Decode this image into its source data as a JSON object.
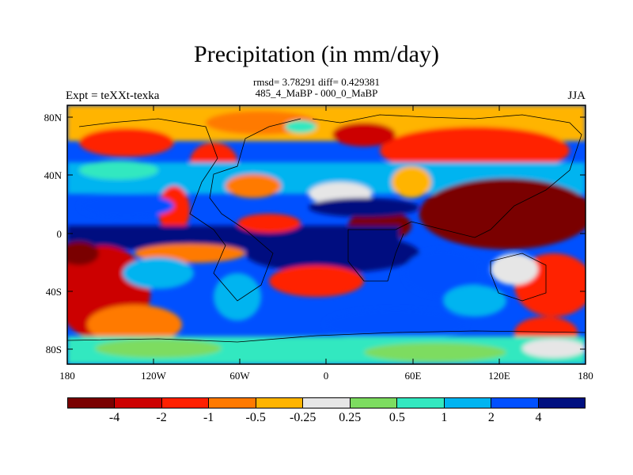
{
  "title": "Precipitation (in mm/day)",
  "stats_line1": "rmsd= 3.78291 diff= 0.429381",
  "stats_line2": "485_4_MaBP - 000_0_MaBP",
  "left_label": "Expt = teXXt-texka",
  "right_label": "JJA",
  "y_ticks": [
    "80N",
    "40N",
    "0",
    "40S",
    "80S"
  ],
  "x_ticks": [
    "180",
    "120W",
    "60W",
    "0",
    "60E",
    "120E",
    "180"
  ],
  "colorbar": {
    "colors": [
      "#7a0000",
      "#cc0000",
      "#ff2000",
      "#ff7a00",
      "#ffb400",
      "#e6e6e6",
      "#7ddc60",
      "#33e8c0",
      "#00b4f0",
      "#0050ff",
      "#001080"
    ],
    "labels": [
      "-4",
      "-2",
      "-1",
      "-0.5",
      "-0.25",
      "0.25",
      "0.5",
      "1",
      "2",
      "4"
    ]
  }
}
